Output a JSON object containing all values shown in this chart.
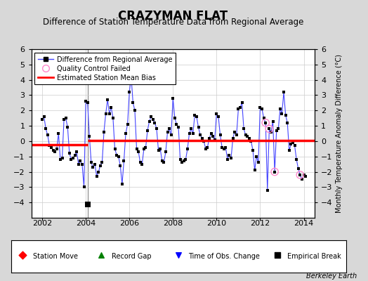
{
  "title": "CRAZYMAN FLAT",
  "subtitle": "Difference of Station Temperature Data from Regional Average",
  "ylabel_right": "Monthly Temperature Anomaly Difference (°C)",
  "credit": "Berkeley Earth",
  "xlim": [
    2001.5,
    2014.5
  ],
  "ylim": [
    -5,
    6
  ],
  "yticks": [
    -4,
    -3,
    -2,
    -1,
    0,
    1,
    2,
    3,
    4,
    5,
    6
  ],
  "xticks": [
    2002,
    2004,
    2006,
    2008,
    2010,
    2012,
    2014
  ],
  "background_color": "#d8d8d8",
  "plot_bg_color": "#ffffff",
  "line_color": "#4444ff",
  "dot_color": "#000000",
  "bias_color": "#ff0000",
  "bias_pre": -0.22,
  "bias_pre_start": 2001.5,
  "bias_pre_end": 2004.08,
  "bias_post": 0.05,
  "bias_post_start": 2004.08,
  "bias_post_end": 2014.5,
  "empirical_break_x": 2004.08,
  "empirical_break_y": -4.15,
  "time_series": [
    [
      2002.0,
      1.4
    ],
    [
      2002.083,
      1.6
    ],
    [
      2002.167,
      0.8
    ],
    [
      2002.25,
      0.4
    ],
    [
      2002.333,
      -0.3
    ],
    [
      2002.417,
      -0.4
    ],
    [
      2002.5,
      -0.6
    ],
    [
      2002.583,
      -0.7
    ],
    [
      2002.667,
      -0.5
    ],
    [
      2002.75,
      0.5
    ],
    [
      2002.833,
      -1.2
    ],
    [
      2002.917,
      -1.1
    ],
    [
      2003.0,
      1.4
    ],
    [
      2003.083,
      1.5
    ],
    [
      2003.167,
      0.9
    ],
    [
      2003.25,
      -0.8
    ],
    [
      2003.333,
      -1.2
    ],
    [
      2003.417,
      -1.1
    ],
    [
      2003.5,
      -0.9
    ],
    [
      2003.583,
      -0.7
    ],
    [
      2003.667,
      -1.5
    ],
    [
      2003.75,
      -1.3
    ],
    [
      2003.833,
      -1.5
    ],
    [
      2003.917,
      -3.0
    ],
    [
      2004.0,
      2.6
    ],
    [
      2004.083,
      2.5
    ],
    [
      2004.167,
      0.3
    ],
    [
      2004.25,
      -1.4
    ],
    [
      2004.333,
      -1.7
    ],
    [
      2004.417,
      -1.5
    ],
    [
      2004.5,
      -2.3
    ],
    [
      2004.583,
      -2.0
    ],
    [
      2004.667,
      -1.6
    ],
    [
      2004.75,
      -1.4
    ],
    [
      2004.833,
      0.6
    ],
    [
      2004.917,
      1.8
    ],
    [
      2005.0,
      2.7
    ],
    [
      2005.083,
      1.8
    ],
    [
      2005.167,
      2.2
    ],
    [
      2005.25,
      1.5
    ],
    [
      2005.333,
      -0.5
    ],
    [
      2005.417,
      -0.9
    ],
    [
      2005.5,
      -1.0
    ],
    [
      2005.583,
      -1.6
    ],
    [
      2005.667,
      -2.8
    ],
    [
      2005.75,
      -1.3
    ],
    [
      2005.833,
      0.5
    ],
    [
      2005.917,
      1.1
    ],
    [
      2006.0,
      3.2
    ],
    [
      2006.083,
      4.2
    ],
    [
      2006.167,
      2.5
    ],
    [
      2006.25,
      2.0
    ],
    [
      2006.333,
      -0.5
    ],
    [
      2006.417,
      -0.7
    ],
    [
      2006.5,
      -1.4
    ],
    [
      2006.583,
      -1.5
    ],
    [
      2006.667,
      -0.5
    ],
    [
      2006.75,
      -0.4
    ],
    [
      2006.833,
      0.7
    ],
    [
      2006.917,
      1.3
    ],
    [
      2007.0,
      1.6
    ],
    [
      2007.083,
      1.4
    ],
    [
      2007.167,
      1.2
    ],
    [
      2007.25,
      0.8
    ],
    [
      2007.333,
      -0.6
    ],
    [
      2007.417,
      -0.5
    ],
    [
      2007.5,
      -1.3
    ],
    [
      2007.583,
      -1.4
    ],
    [
      2007.667,
      -0.7
    ],
    [
      2007.75,
      0.6
    ],
    [
      2007.833,
      0.8
    ],
    [
      2007.917,
      0.4
    ],
    [
      2008.0,
      2.8
    ],
    [
      2008.083,
      1.5
    ],
    [
      2008.167,
      1.1
    ],
    [
      2008.25,
      0.9
    ],
    [
      2008.333,
      -1.2
    ],
    [
      2008.417,
      -1.4
    ],
    [
      2008.5,
      -1.3
    ],
    [
      2008.583,
      -1.2
    ],
    [
      2008.667,
      -0.5
    ],
    [
      2008.75,
      0.5
    ],
    [
      2008.833,
      0.8
    ],
    [
      2008.917,
      0.5
    ],
    [
      2009.0,
      1.7
    ],
    [
      2009.083,
      1.6
    ],
    [
      2009.167,
      0.9
    ],
    [
      2009.25,
      0.4
    ],
    [
      2009.333,
      0.2
    ],
    [
      2009.417,
      0.0
    ],
    [
      2009.5,
      -0.5
    ],
    [
      2009.583,
      -0.4
    ],
    [
      2009.667,
      0.2
    ],
    [
      2009.75,
      0.5
    ],
    [
      2009.833,
      0.3
    ],
    [
      2009.917,
      0.1
    ],
    [
      2010.0,
      1.8
    ],
    [
      2010.083,
      1.6
    ],
    [
      2010.167,
      0.4
    ],
    [
      2010.25,
      -0.4
    ],
    [
      2010.333,
      -0.5
    ],
    [
      2010.417,
      -0.4
    ],
    [
      2010.5,
      -1.2
    ],
    [
      2010.583,
      -0.9
    ],
    [
      2010.667,
      -1.1
    ],
    [
      2010.75,
      0.2
    ],
    [
      2010.833,
      0.6
    ],
    [
      2010.917,
      0.4
    ],
    [
      2011.0,
      2.1
    ],
    [
      2011.083,
      2.2
    ],
    [
      2011.167,
      2.5
    ],
    [
      2011.25,
      0.8
    ],
    [
      2011.333,
      0.4
    ],
    [
      2011.417,
      0.3
    ],
    [
      2011.5,
      0.2
    ],
    [
      2011.583,
      0.0
    ],
    [
      2011.667,
      -0.6
    ],
    [
      2011.75,
      -1.9
    ],
    [
      2011.833,
      -1.0
    ],
    [
      2011.917,
      -1.4
    ],
    [
      2012.0,
      2.2
    ],
    [
      2012.083,
      2.1
    ],
    [
      2012.167,
      1.5
    ],
    [
      2012.25,
      1.2
    ],
    [
      2012.333,
      -3.2
    ],
    [
      2012.417,
      0.8
    ],
    [
      2012.5,
      0.6
    ],
    [
      2012.583,
      1.3
    ],
    [
      2012.667,
      -2.0
    ],
    [
      2012.75,
      0.7
    ],
    [
      2012.833,
      0.8
    ],
    [
      2012.917,
      2.1
    ],
    [
      2013.0,
      1.8
    ],
    [
      2013.083,
      3.2
    ],
    [
      2013.167,
      1.7
    ],
    [
      2013.25,
      1.2
    ],
    [
      2013.333,
      -0.6
    ],
    [
      2013.417,
      -0.2
    ],
    [
      2013.5,
      -0.1
    ],
    [
      2013.583,
      -0.3
    ],
    [
      2013.667,
      -1.2
    ],
    [
      2013.75,
      -1.8
    ],
    [
      2013.833,
      -2.2
    ],
    [
      2013.917,
      -2.5
    ],
    [
      2014.0,
      -2.2
    ],
    [
      2014.083,
      -2.3
    ]
  ],
  "qc_failed": [
    [
      2012.25,
      1.2
    ],
    [
      2012.417,
      0.8
    ],
    [
      2012.667,
      -2.0
    ],
    [
      2013.833,
      -2.2
    ]
  ],
  "grid_color": "#cccccc",
  "title_fontsize": 12,
  "subtitle_fontsize": 8.5,
  "axis_fontsize": 8
}
